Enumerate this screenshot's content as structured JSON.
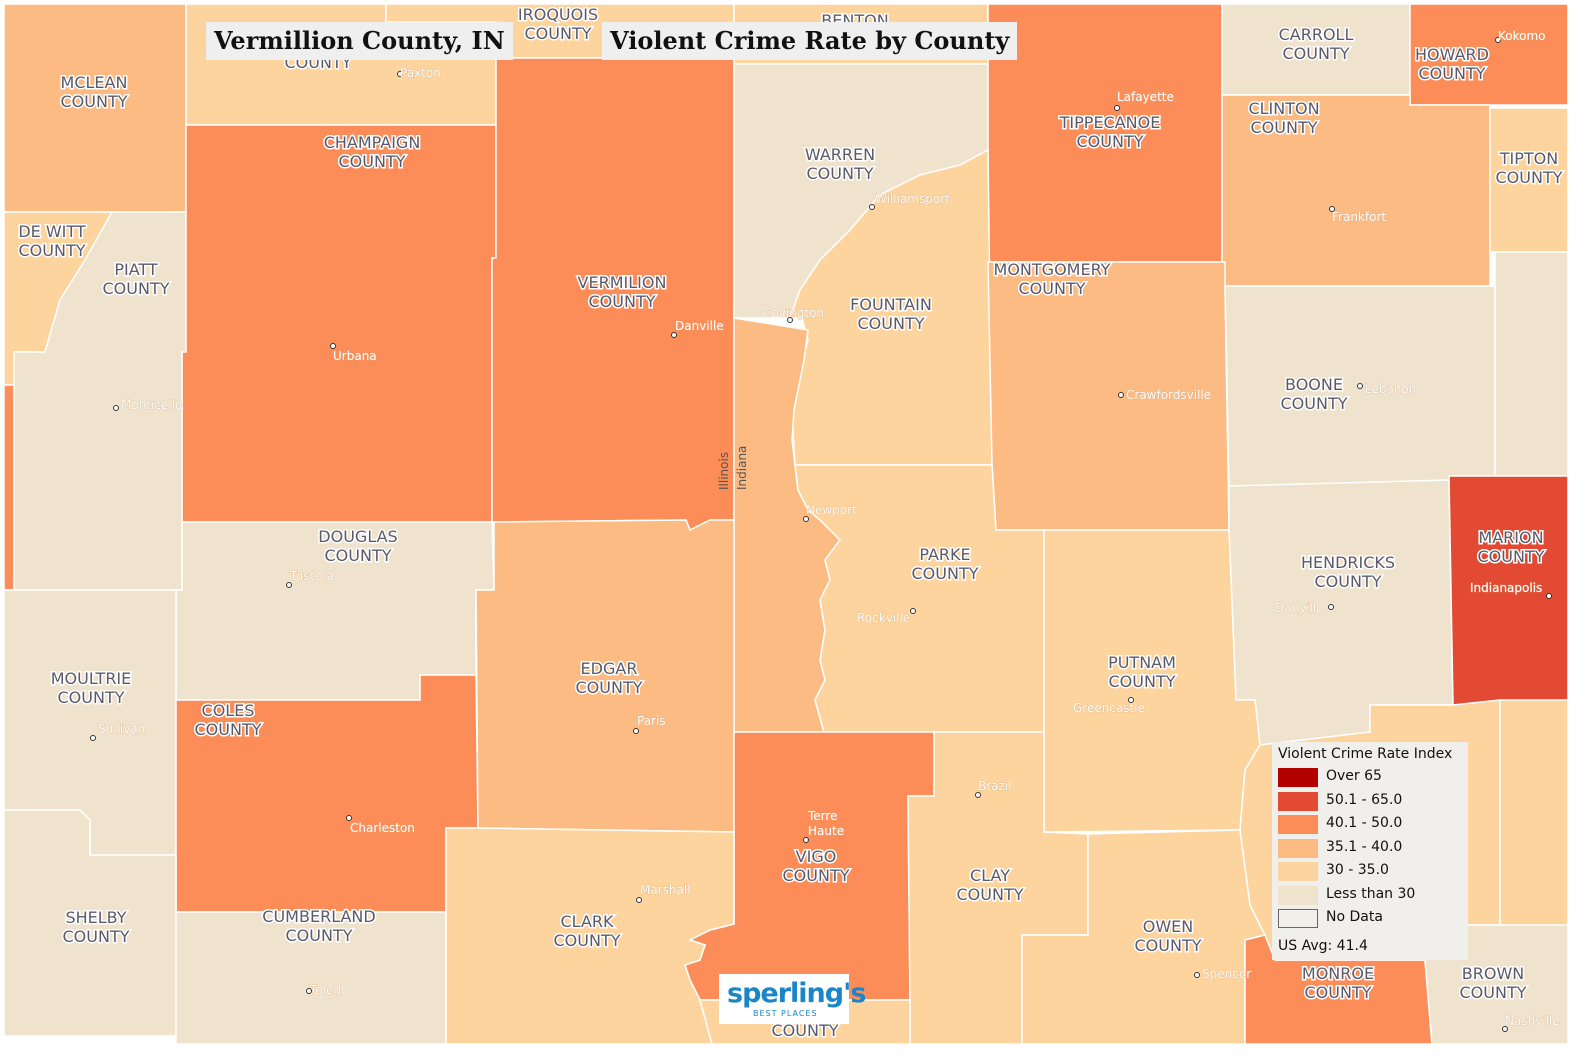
{
  "title_left": "Vermillion County, IN",
  "title_right": "Violent Crime Rate by County",
  "colors": {
    "over65": "#b30000",
    "r50_65": "#e34a33",
    "r40_50": "#fc8d59",
    "r35_40": "#fdbb84",
    "r30_35": "#fdd49e",
    "lt30": "#f0e3cd",
    "nodata": "#f0efea"
  },
  "counties": [
    {
      "label": "MCLEAN\nCOUNTY"
    },
    {
      "label": "COUNTY"
    },
    {
      "label": "IROQUOIS\nCOUNTY"
    },
    {
      "label": "BENTON"
    },
    {
      "label": "CARROLL\nCOUNTY"
    },
    {
      "label": "HOWARD\nCOUNTY"
    },
    {
      "label": "CHAMPAIGN\nCOUNTY"
    },
    {
      "label": "WARREN\nCOUNTY"
    },
    {
      "label": "TIPPECANOE\nCOUNTY"
    },
    {
      "label": "CLINTON\nCOUNTY"
    },
    {
      "label": "TIPTON\nCOUNTY"
    },
    {
      "label": "DE WITT\nCOUNTY"
    },
    {
      "label": "PIATT\nCOUNTY"
    },
    {
      "label": "VERMILION\nCOUNTY"
    },
    {
      "label": "FOUNTAIN\nCOUNTY"
    },
    {
      "label": "MONTGOMERY\nCOUNTY"
    },
    {
      "label": "BOONE\nCOUNTY"
    },
    {
      "label": "DOUGLAS\nCOUNTY"
    },
    {
      "label": "PARKE\nCOUNTY"
    },
    {
      "label": "HENDRICKS\nCOUNTY"
    },
    {
      "label": "MARION\nCOUNTY"
    },
    {
      "label": "MOULTRIE\nCOUNTY"
    },
    {
      "label": "COLES\nCOUNTY"
    },
    {
      "label": "EDGAR\nCOUNTY"
    },
    {
      "label": "PUTNAM\nCOUNTY"
    },
    {
      "label": "VIGO\nCOUNTY"
    },
    {
      "label": "CLAY\nCOUNTY"
    },
    {
      "label": "SHELBY\nCOUNTY"
    },
    {
      "label": "CUMBERLAND\nCOUNTY"
    },
    {
      "label": "CLARK\nCOUNTY"
    },
    {
      "label": "OWEN\nCOUNTY"
    },
    {
      "label": "MONROE\nCOUNTY"
    },
    {
      "label": "BROWN\nCOUNTY"
    },
    {
      "label": "COUNTY"
    }
  ],
  "cities": [
    "Paxton",
    "Kokomo",
    "Lafayette",
    "Williamsport",
    "Frankfort",
    "Covington",
    "Danville",
    "Urbana",
    "Monticello",
    "Crawfordsville",
    "Lebanon",
    "Newport",
    "Tuscola",
    "Rockville",
    "Danville",
    "Indianapolis",
    "Sullivan",
    "Paris",
    "Greencastle",
    "Brazil",
    "Terre\nHaute",
    "Charleston",
    "Marshall",
    "Toledo",
    "Spencer",
    "Nashville"
  ],
  "state_labels": {
    "illinois": "Illinois",
    "indiana": "Indiana"
  },
  "legend": {
    "title": "Violent Crime Rate Index",
    "items": [
      {
        "label": "Over 65",
        "color": "#b30000"
      },
      {
        "label": "50.1 - 65.0",
        "color": "#e34a33"
      },
      {
        "label": "40.1 - 50.0",
        "color": "#fc8d59"
      },
      {
        "label": "35.1 - 40.0",
        "color": "#fdbb84"
      },
      {
        "label": "30 - 35.0",
        "color": "#fdd49e"
      },
      {
        "label": "Less than 30",
        "color": "#f0e3cd"
      },
      {
        "label": "No Data",
        "color": "#f0efea"
      }
    ],
    "us_avg": "US Avg: 41.4"
  },
  "logo": {
    "main": "sperling's",
    "sub": "BEST PLACES"
  }
}
